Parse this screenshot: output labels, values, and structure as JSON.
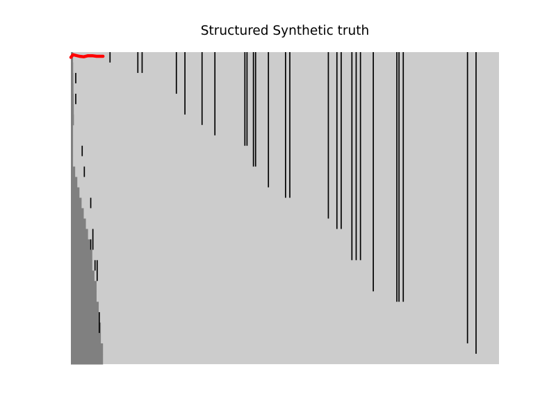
{
  "chart_data": {
    "type": "heatmap",
    "title": "Structured Synthetic truth",
    "xlabel": "",
    "ylabel": "",
    "axes_visible": false,
    "grid": false,
    "n_cols": 200,
    "n_rows": 30,
    "palette": {
      "background": "#cccccc",
      "lower_region": "#808080",
      "event": "#000000",
      "trace": "#ff0000"
    },
    "lower_region_boundary": [
      1,
      1,
      1,
      1,
      2,
      3,
      4,
      5,
      6,
      7,
      8,
      9,
      10,
      10,
      11,
      12,
      12,
      13,
      13,
      14,
      14,
      15,
      15
    ],
    "vertical_events": [
      {
        "col": 2,
        "start": 2,
        "end": 3
      },
      {
        "col": 2,
        "start": 4,
        "end": 5
      },
      {
        "col": 5,
        "start": 9,
        "end": 10
      },
      {
        "col": 6,
        "start": 11,
        "end": 12
      },
      {
        "col": 9,
        "start": 14,
        "end": 15
      },
      {
        "col": 10,
        "start": 17,
        "end": 19
      },
      {
        "col": 9,
        "start": 18,
        "end": 19
      },
      {
        "col": 11,
        "start": 20,
        "end": 21
      },
      {
        "col": 12,
        "start": 20,
        "end": 22
      },
      {
        "col": 13,
        "start": 25,
        "end": 27
      },
      {
        "col": 18,
        "start": 0,
        "end": 1
      },
      {
        "col": 31,
        "start": 0,
        "end": 2
      },
      {
        "col": 33,
        "start": 0,
        "end": 2
      },
      {
        "col": 49,
        "start": 0,
        "end": 4
      },
      {
        "col": 53,
        "start": 0,
        "end": 6
      },
      {
        "col": 61,
        "start": 0,
        "end": 7
      },
      {
        "col": 67,
        "start": 0,
        "end": 8
      },
      {
        "col": 81,
        "start": 0,
        "end": 9
      },
      {
        "col": 82,
        "start": 0,
        "end": 9
      },
      {
        "col": 85,
        "start": 0,
        "end": 11
      },
      {
        "col": 86,
        "start": 0,
        "end": 11
      },
      {
        "col": 92,
        "start": 0,
        "end": 13
      },
      {
        "col": 100,
        "start": 0,
        "end": 14
      },
      {
        "col": 102,
        "start": 0,
        "end": 14
      },
      {
        "col": 120,
        "start": 0,
        "end": 16
      },
      {
        "col": 124,
        "start": 0,
        "end": 17
      },
      {
        "col": 126,
        "start": 0,
        "end": 17
      },
      {
        "col": 131,
        "start": 0,
        "end": 20
      },
      {
        "col": 133,
        "start": 0,
        "end": 20
      },
      {
        "col": 135,
        "start": 0,
        "end": 20
      },
      {
        "col": 141,
        "start": 0,
        "end": 23
      },
      {
        "col": 152,
        "start": 0,
        "end": 24
      },
      {
        "col": 153,
        "start": 0,
        "end": 24
      },
      {
        "col": 155,
        "start": 0,
        "end": 24
      },
      {
        "col": 185,
        "start": 0,
        "end": 28
      },
      {
        "col": 189,
        "start": 0,
        "end": 29
      }
    ],
    "trace": {
      "x": [
        0,
        1,
        2,
        4,
        6,
        8,
        10,
        12,
        14,
        15
      ],
      "y": [
        0.5,
        0.25,
        0.3,
        0.4,
        0.45,
        0.35,
        0.35,
        0.4,
        0.4,
        0.4
      ]
    }
  }
}
